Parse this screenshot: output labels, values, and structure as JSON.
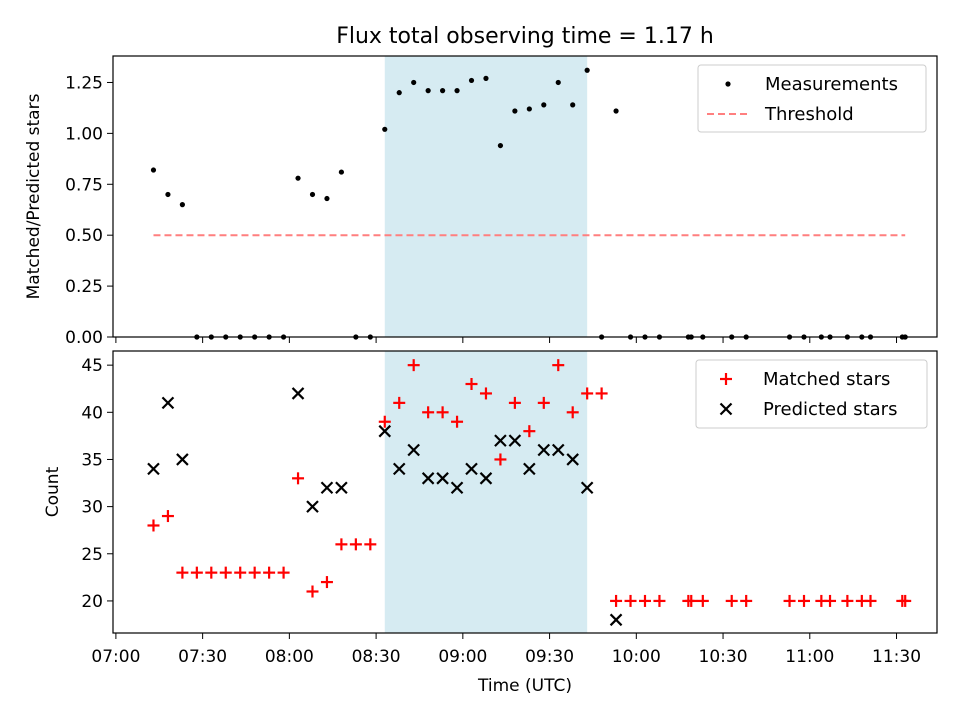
{
  "chart_data": [
    {
      "type": "scatter",
      "title": "Flux total observing time = 1.17 h",
      "xlabel": "",
      "ylabel": "Matched/Predicted stars",
      "xlim": [
        "06:59",
        "11:44"
      ],
      "ylim": [
        0,
        1.38
      ],
      "yticks": [
        0.0,
        0.25,
        0.5,
        0.75,
        1.0,
        1.25
      ],
      "ytick_labels": [
        "0.00",
        "0.25",
        "0.50",
        "0.75",
        "1.00",
        "1.25"
      ],
      "grid": false,
      "legend": {
        "placement": "top-right",
        "entries": [
          "Measurements",
          "Threshold"
        ]
      },
      "highlight_span": {
        "from": "08:33",
        "to": "09:43",
        "color": "#add8e6"
      },
      "series": [
        {
          "name": "Measurements",
          "marker": "dot",
          "color": "#000000",
          "points": [
            [
              "07:13",
              0.82
            ],
            [
              "07:18",
              0.7
            ],
            [
              "07:23",
              0.65
            ],
            [
              "07:28",
              0.0
            ],
            [
              "07:33",
              0.0
            ],
            [
              "07:38",
              0.0
            ],
            [
              "07:43",
              0.0
            ],
            [
              "07:48",
              0.0
            ],
            [
              "07:53",
              0.0
            ],
            [
              "07:58",
              0.0
            ],
            [
              "08:03",
              0.78
            ],
            [
              "08:08",
              0.7
            ],
            [
              "08:13",
              0.68
            ],
            [
              "08:18",
              0.81
            ],
            [
              "08:23",
              0.0
            ],
            [
              "08:28",
              0.0
            ],
            [
              "08:33",
              1.02
            ],
            [
              "08:38",
              1.2
            ],
            [
              "08:43",
              1.25
            ],
            [
              "08:48",
              1.21
            ],
            [
              "08:53",
              1.21
            ],
            [
              "08:58",
              1.21
            ],
            [
              "09:03",
              1.26
            ],
            [
              "09:08",
              1.27
            ],
            [
              "09:13",
              0.94
            ],
            [
              "09:18",
              1.11
            ],
            [
              "09:23",
              1.12
            ],
            [
              "09:28",
              1.14
            ],
            [
              "09:33",
              1.25
            ],
            [
              "09:38",
              1.14
            ],
            [
              "09:43",
              1.31
            ],
            [
              "09:48",
              0.0
            ],
            [
              "09:53",
              1.11
            ],
            [
              "09:58",
              0.0
            ],
            [
              "10:03",
              0.0
            ],
            [
              "10:08",
              0.0
            ],
            [
              "10:18",
              0.0
            ],
            [
              "10:19",
              0.0
            ],
            [
              "10:23",
              0.0
            ],
            [
              "10:33",
              0.0
            ],
            [
              "10:38",
              0.0
            ],
            [
              "10:53",
              0.0
            ],
            [
              "10:58",
              0.0
            ],
            [
              "11:04",
              0.0
            ],
            [
              "11:07",
              0.0
            ],
            [
              "11:13",
              0.0
            ],
            [
              "11:18",
              0.0
            ],
            [
              "11:21",
              0.0
            ],
            [
              "11:32",
              0.0
            ],
            [
              "11:33",
              0.0
            ]
          ]
        },
        {
          "name": "Threshold",
          "style": "dashed",
          "color": "#ff7f7f",
          "points": [
            [
              "07:13",
              0.5
            ],
            [
              "11:33",
              0.5
            ]
          ]
        }
      ]
    },
    {
      "type": "scatter",
      "title": "",
      "xlabel": "Time (UTC)",
      "ylabel": "Count",
      "xlim": [
        "06:59",
        "11:44"
      ],
      "ylim": [
        16.6,
        46.5
      ],
      "yticks": [
        20,
        25,
        30,
        35,
        40,
        45
      ],
      "ytick_labels": [
        "20",
        "25",
        "30",
        "35",
        "40",
        "45"
      ],
      "xticks": [
        "07:00",
        "07:30",
        "08:00",
        "08:30",
        "09:00",
        "09:30",
        "10:00",
        "10:30",
        "11:00",
        "11:30"
      ],
      "grid": false,
      "legend": {
        "placement": "top-right",
        "entries": [
          "Matched stars",
          "Predicted stars"
        ]
      },
      "highlight_span": {
        "from": "08:33",
        "to": "09:43",
        "color": "#add8e6"
      },
      "series": [
        {
          "name": "Matched stars",
          "marker": "plus",
          "color": "#ff0000",
          "points": [
            [
              "07:13",
              28
            ],
            [
              "07:18",
              29
            ],
            [
              "07:23",
              23
            ],
            [
              "07:28",
              23
            ],
            [
              "07:33",
              23
            ],
            [
              "07:38",
              23
            ],
            [
              "07:43",
              23
            ],
            [
              "07:48",
              23
            ],
            [
              "07:53",
              23
            ],
            [
              "07:58",
              23
            ],
            [
              "08:03",
              33
            ],
            [
              "08:08",
              21
            ],
            [
              "08:13",
              22
            ],
            [
              "08:18",
              26
            ],
            [
              "08:23",
              26
            ],
            [
              "08:28",
              26
            ],
            [
              "08:33",
              39
            ],
            [
              "08:38",
              41
            ],
            [
              "08:43",
              45
            ],
            [
              "08:48",
              40
            ],
            [
              "08:53",
              40
            ],
            [
              "08:58",
              39
            ],
            [
              "09:03",
              43
            ],
            [
              "09:08",
              42
            ],
            [
              "09:13",
              35
            ],
            [
              "09:18",
              41
            ],
            [
              "09:23",
              38
            ],
            [
              "09:28",
              41
            ],
            [
              "09:33",
              45
            ],
            [
              "09:38",
              40
            ],
            [
              "09:43",
              42
            ],
            [
              "09:48",
              42
            ],
            [
              "09:53",
              20
            ],
            [
              "09:58",
              20
            ],
            [
              "10:03",
              20
            ],
            [
              "10:08",
              20
            ],
            [
              "10:18",
              20
            ],
            [
              "10:19",
              20
            ],
            [
              "10:23",
              20
            ],
            [
              "10:33",
              20
            ],
            [
              "10:38",
              20
            ],
            [
              "10:53",
              20
            ],
            [
              "10:58",
              20
            ],
            [
              "11:04",
              20
            ],
            [
              "11:07",
              20
            ],
            [
              "11:13",
              20
            ],
            [
              "11:18",
              20
            ],
            [
              "11:21",
              20
            ],
            [
              "11:32",
              20
            ],
            [
              "11:33",
              20
            ]
          ]
        },
        {
          "name": "Predicted stars",
          "marker": "x",
          "color": "#000000",
          "points": [
            [
              "07:13",
              34
            ],
            [
              "07:18",
              41
            ],
            [
              "07:23",
              35
            ],
            [
              "08:03",
              42
            ],
            [
              "08:08",
              30
            ],
            [
              "08:13",
              32
            ],
            [
              "08:18",
              32
            ],
            [
              "08:33",
              38
            ],
            [
              "08:38",
              34
            ],
            [
              "08:43",
              36
            ],
            [
              "08:48",
              33
            ],
            [
              "08:53",
              33
            ],
            [
              "08:58",
              32
            ],
            [
              "09:03",
              34
            ],
            [
              "09:08",
              33
            ],
            [
              "09:13",
              37
            ],
            [
              "09:18",
              37
            ],
            [
              "09:23",
              34
            ],
            [
              "09:28",
              36
            ],
            [
              "09:33",
              36
            ],
            [
              "09:38",
              35
            ],
            [
              "09:43",
              32
            ],
            [
              "09:53",
              18
            ]
          ]
        }
      ]
    }
  ]
}
